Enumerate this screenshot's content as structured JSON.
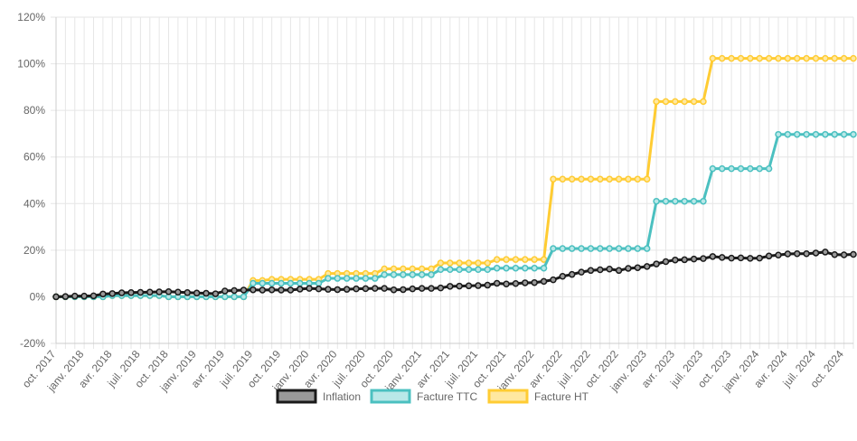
{
  "chart_data": {
    "type": "line",
    "title": "",
    "xlabel": "",
    "ylabel": "",
    "ylim": [
      -20,
      120
    ],
    "yticks": [
      "-20%",
      "0%",
      "20%",
      "40%",
      "60%",
      "80%",
      "100%",
      "120%"
    ],
    "ytick_values": [
      -20,
      0,
      20,
      40,
      60,
      80,
      100,
      120
    ],
    "grid": true,
    "legend": "bottom",
    "x": [
      "oct. 2017",
      "nov. 2017",
      "déc. 2017",
      "janv. 2018",
      "févr. 2018",
      "mars 2018",
      "avr. 2018",
      "mai 2018",
      "juin 2018",
      "juil. 2018",
      "août 2018",
      "sept. 2018",
      "oct. 2018",
      "nov. 2018",
      "déc. 2018",
      "janv. 2019",
      "févr. 2019",
      "mars 2019",
      "avr. 2019",
      "mai 2019",
      "juin 2019",
      "juil. 2019",
      "août 2019",
      "sept. 2019",
      "oct. 2019",
      "nov. 2019",
      "déc. 2019",
      "janv. 2020",
      "févr. 2020",
      "mars 2020",
      "avr. 2020",
      "mai 2020",
      "juin 2020",
      "juil. 2020",
      "août 2020",
      "sept. 2020",
      "oct. 2020",
      "nov. 2020",
      "déc. 2020",
      "janv. 2021",
      "févr. 2021",
      "mars 2021",
      "avr. 2021",
      "mai 2021",
      "juin 2021",
      "juil. 2021",
      "août 2021",
      "sept. 2021",
      "oct. 2021",
      "nov. 2021",
      "déc. 2021",
      "janv. 2022",
      "févr. 2022",
      "mars 2022",
      "avr. 2022",
      "mai 2022",
      "juin 2022",
      "juil. 2022",
      "août 2022",
      "sept. 2022",
      "oct. 2022",
      "nov. 2022",
      "déc. 2022",
      "janv. 2023",
      "févr. 2023",
      "mars 2023",
      "avr. 2023",
      "mai 2023",
      "juin 2023",
      "juil. 2023",
      "août 2023",
      "sept. 2023",
      "oct. 2023",
      "nov. 2023",
      "déc. 2023",
      "janv. 2024",
      "févr. 2024",
      "mars 2024",
      "avr. 2024",
      "mai 2024",
      "juin 2024",
      "juil. 2024",
      "août 2024",
      "sept. 2024",
      "oct. 2024",
      "nov. 2024"
    ],
    "x_tick_labels": [
      "oct. 2017",
      "janv. 2018",
      "avr. 2018",
      "juil. 2018",
      "oct. 2018",
      "janv. 2019",
      "avr. 2019",
      "juil. 2019",
      "oct. 2019",
      "janv. 2020",
      "avr. 2020",
      "juil. 2020",
      "oct. 2020",
      "janv. 2021",
      "avr. 2021",
      "juil. 2021",
      "oct. 2021",
      "janv. 2022",
      "avr. 2022",
      "juil. 2022",
      "oct. 2022",
      "janv. 2023",
      "avr. 2023",
      "juil. 2023",
      "oct. 2023",
      "janv. 2024",
      "avr. 2024",
      "juil. 2024",
      "oct. 2024"
    ],
    "series": [
      {
        "name": "Inflation",
        "color": "#1a1a1a",
        "fill": "#999999",
        "values": [
          0,
          0.1,
          0.3,
          0.3,
          0.4,
          1.2,
          1.4,
          1.7,
          1.8,
          1.9,
          2.0,
          2.1,
          2.2,
          2.0,
          1.8,
          1.6,
          1.5,
          1.3,
          2.5,
          2.7,
          2.9,
          3.0,
          2.9,
          3.0,
          2.9,
          2.9,
          3.3,
          3.6,
          3.4,
          3.2,
          3.1,
          3.2,
          3.4,
          3.5,
          3.6,
          3.6,
          3.0,
          3.1,
          3.4,
          3.6,
          3.6,
          3.8,
          4.5,
          4.6,
          4.7,
          4.8,
          5.0,
          5.8,
          5.5,
          5.7,
          6.0,
          6.1,
          6.6,
          7.3,
          8.8,
          9.6,
          10.6,
          11.3,
          11.6,
          11.9,
          11.3,
          12.2,
          12.5,
          13.0,
          14.1,
          15.1,
          15.8,
          15.9,
          16.2,
          16.4,
          17.3,
          16.9,
          16.6,
          16.7,
          16.5,
          16.6,
          17.5,
          17.9,
          18.4,
          18.5,
          18.5,
          18.8,
          19.2,
          18.1,
          18.0,
          18.2
        ]
      },
      {
        "name": "Facture TTC",
        "color": "#4bc0c0",
        "fill": "#b9e8e8",
        "values": [
          0,
          0,
          0,
          0,
          0,
          0,
          0.5,
          0.5,
          0.5,
          0.5,
          0.5,
          0.5,
          0,
          0,
          0,
          0,
          0,
          0,
          0,
          0,
          0,
          5.8,
          5.8,
          5.8,
          5.8,
          5.8,
          5.8,
          5.8,
          5.8,
          7.9,
          7.9,
          7.9,
          7.9,
          7.9,
          7.9,
          9.5,
          9.5,
          9.5,
          9.5,
          9.5,
          9.5,
          11.7,
          11.7,
          11.7,
          11.7,
          11.7,
          11.7,
          12.3,
          12.3,
          12.3,
          12.3,
          12.3,
          12.3,
          20.7,
          20.7,
          20.7,
          20.7,
          20.7,
          20.7,
          20.7,
          20.7,
          20.7,
          20.7,
          20.7,
          41.0,
          41.0,
          41.0,
          41.0,
          41.0,
          41.0,
          55.0,
          55.0,
          55.0,
          55.0,
          55.0,
          55.0,
          55.0,
          69.7,
          69.7,
          69.7,
          69.7,
          69.7,
          69.7,
          69.7,
          69.7,
          69.7
        ]
      },
      {
        "name": "Facture HT",
        "color": "#ffcc33",
        "fill": "#ffe8a0",
        "values": [
          0,
          0,
          0,
          0,
          0,
          0,
          0.5,
          0.5,
          0.5,
          0.5,
          0.5,
          0.5,
          0,
          0,
          0,
          0,
          0,
          0,
          0,
          0,
          0,
          7.0,
          7.0,
          7.5,
          7.5,
          7.5,
          7.5,
          7.5,
          7.5,
          10.0,
          10.0,
          10.0,
          10.0,
          10.0,
          10.0,
          12.0,
          12.0,
          12.0,
          12.0,
          12.0,
          12.0,
          14.5,
          14.5,
          14.5,
          14.5,
          14.5,
          14.5,
          16.0,
          16.0,
          16.0,
          16.0,
          16.0,
          16.0,
          50.5,
          50.5,
          50.5,
          50.5,
          50.5,
          50.5,
          50.5,
          50.5,
          50.5,
          50.5,
          50.5,
          83.8,
          83.8,
          83.8,
          83.8,
          83.8,
          83.8,
          102.3,
          102.3,
          102.3,
          102.3,
          102.3,
          102.3,
          102.3,
          102.3,
          102.3,
          102.3,
          102.3,
          102.3,
          102.3,
          102.3,
          102.3,
          102.3
        ]
      }
    ]
  }
}
